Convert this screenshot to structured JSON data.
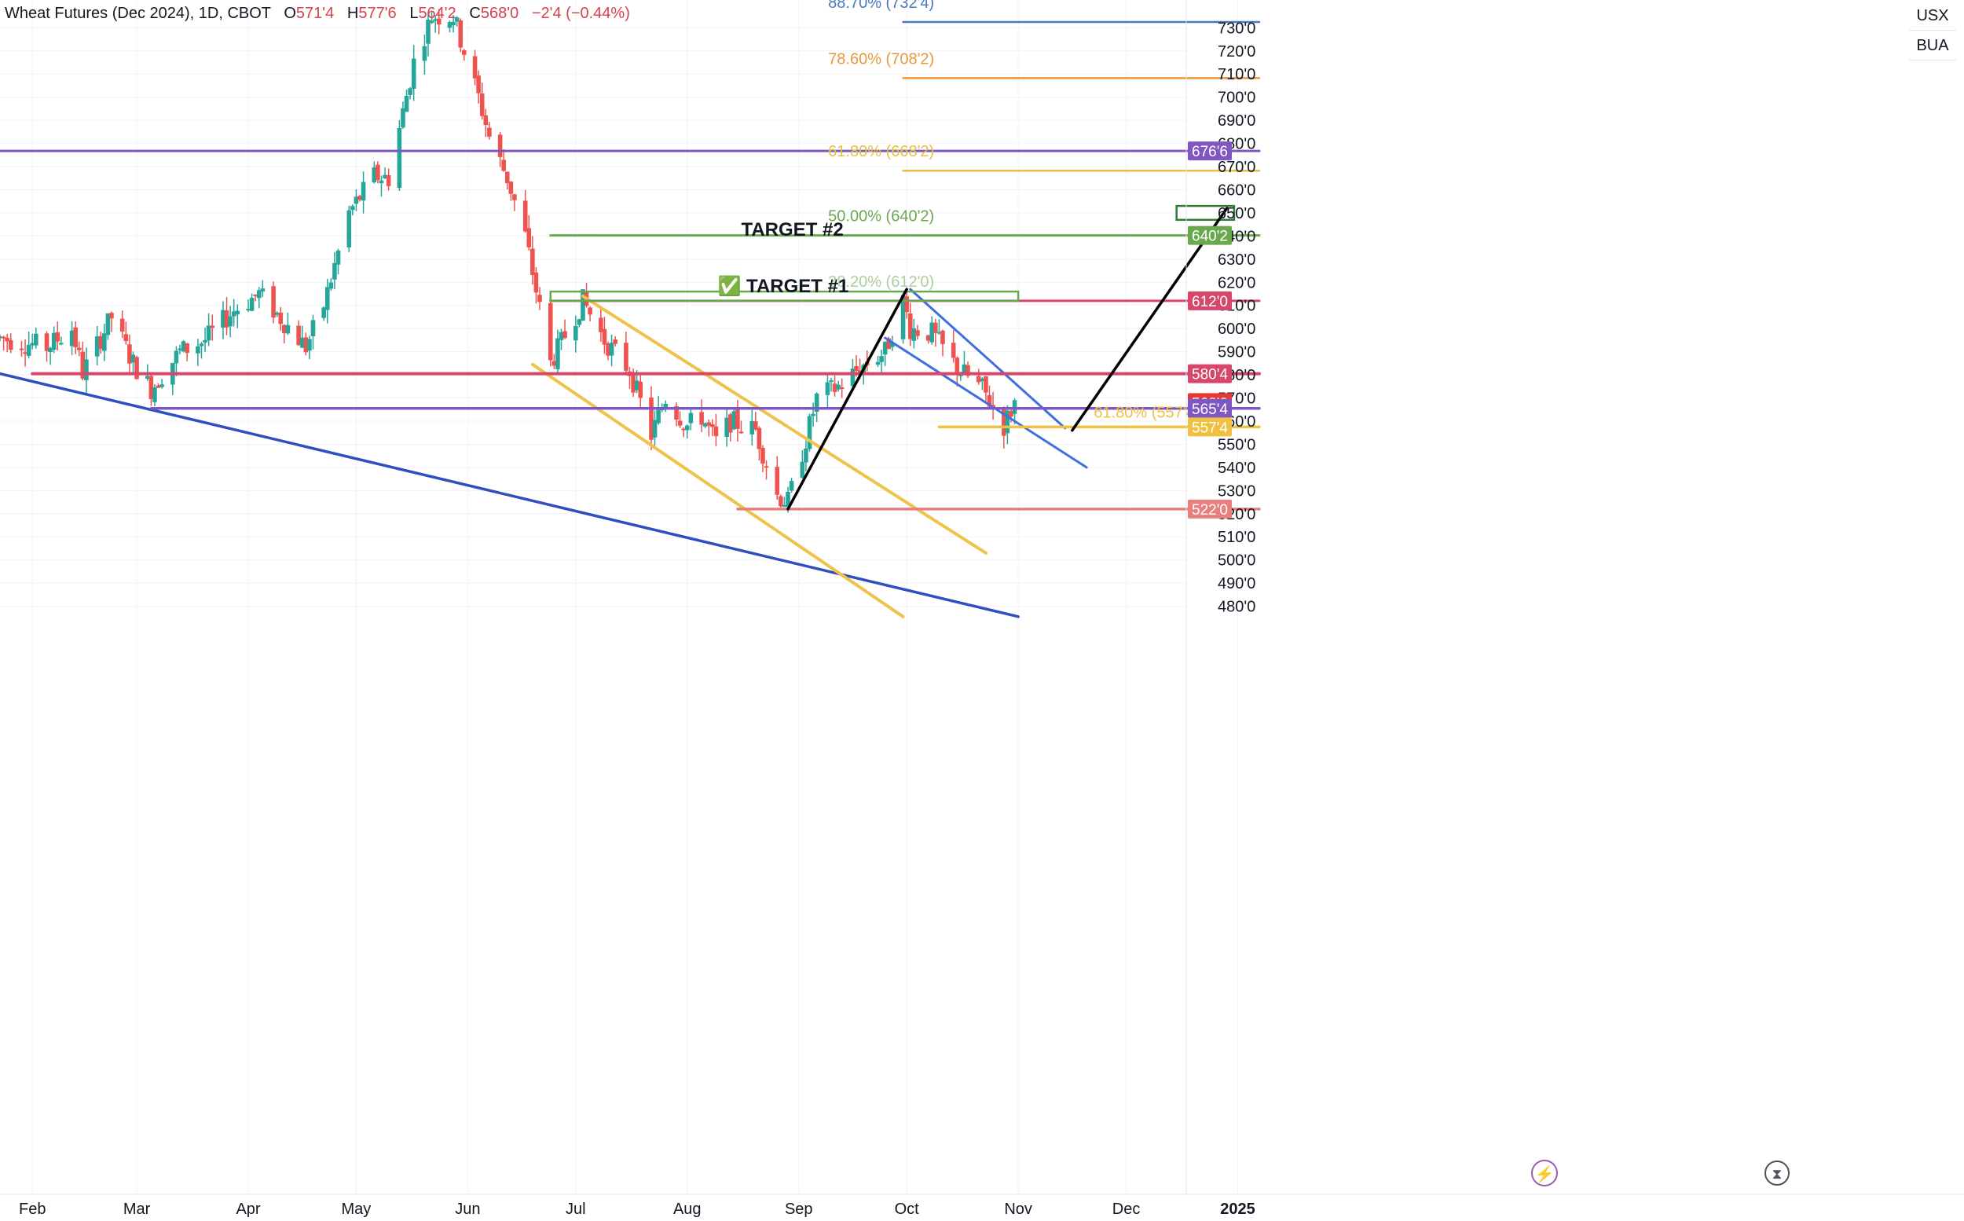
{
  "header": {
    "symbol": "Wheat Futures (Dec 2024), 1D, CBOT",
    "o_label": "O",
    "o_value": "571'4",
    "h_label": "H",
    "h_value": "577'6",
    "l_label": "L",
    "l_value": "564'2",
    "c_label": "C",
    "c_value": "568'0",
    "change": "−2'4 (−0.44%)"
  },
  "units": {
    "currency": "USX",
    "unit": "BUA"
  },
  "chart_data": {
    "type": "candlestick",
    "title": "Wheat Futures (Dec 2024), 1D, CBOT",
    "x_range": [
      "2024-01-23",
      "2025-01-07"
    ],
    "ylim": [
      475.0,
      742.0
    ],
    "price_axis_position": "right",
    "grid": true,
    "y_ticks": [
      "480'0",
      "490'0",
      "500'0",
      "510'0",
      "520'0",
      "530'0",
      "540'0",
      "550'0",
      "560'0",
      "570'0",
      "580'0",
      "590'0",
      "600'0",
      "610'0",
      "620'0",
      "630'0",
      "640'0",
      "650'0",
      "660'0",
      "670'0",
      "680'0",
      "690'0",
      "700'0",
      "710'0",
      "720'0",
      "730'0"
    ],
    "y_tick_values": [
      480,
      490,
      500,
      510,
      520,
      530,
      540,
      550,
      560,
      570,
      580,
      590,
      600,
      610,
      620,
      630,
      640,
      650,
      660,
      670,
      680,
      690,
      700,
      710,
      720,
      730
    ],
    "x_ticks": [
      {
        "label": "Feb",
        "date": "2024-02-01"
      },
      {
        "label": "Mar",
        "date": "2024-03-01"
      },
      {
        "label": "Apr",
        "date": "2024-04-01"
      },
      {
        "label": "May",
        "date": "2024-05-01"
      },
      {
        "label": "Jun",
        "date": "2024-06-01"
      },
      {
        "label": "Jul",
        "date": "2024-07-01"
      },
      {
        "label": "Aug",
        "date": "2024-08-01"
      },
      {
        "label": "Sep",
        "date": "2024-09-01"
      },
      {
        "label": "Oct",
        "date": "2024-10-01"
      },
      {
        "label": "Nov",
        "date": "2024-11-01"
      },
      {
        "label": "Dec",
        "date": "2024-12-01"
      },
      {
        "label": "2025",
        "date": "2025-01-01"
      }
    ],
    "colors": {
      "up": "#26a69a",
      "down": "#ef5350",
      "grid": "#f0f3fa"
    },
    "price_waypoints": [
      [
        "2024-01-23",
        596
      ],
      [
        "2024-02-05",
        592
      ],
      [
        "2024-02-12",
        600
      ],
      [
        "2024-02-15",
        581
      ],
      [
        "2024-02-23",
        605
      ],
      [
        "2024-02-29",
        585
      ],
      [
        "2024-03-05",
        574
      ],
      [
        "2024-03-13",
        590
      ],
      [
        "2024-03-20",
        595
      ],
      [
        "2024-03-28",
        608
      ],
      [
        "2024-04-04",
        615
      ],
      [
        "2024-04-12",
        601
      ],
      [
        "2024-04-17",
        592
      ],
      [
        "2024-04-22",
        610
      ],
      [
        "2024-04-29",
        650
      ],
      [
        "2024-05-06",
        666
      ],
      [
        "2024-05-10",
        665
      ],
      [
        "2024-05-17",
        715
      ],
      [
        "2024-05-22",
        735
      ],
      [
        "2024-05-28",
        735
      ],
      [
        "2024-06-04",
        700
      ],
      [
        "2024-06-07",
        683
      ],
      [
        "2024-06-12",
        665
      ],
      [
        "2024-06-17",
        640
      ],
      [
        "2024-06-24",
        585
      ],
      [
        "2024-06-27",
        594
      ],
      [
        "2024-07-03",
        612
      ],
      [
        "2024-07-09",
        595
      ],
      [
        "2024-07-16",
        582
      ],
      [
        "2024-07-22",
        554
      ],
      [
        "2024-07-26",
        570
      ],
      [
        "2024-08-01",
        558
      ],
      [
        "2024-08-05",
        562
      ],
      [
        "2024-08-09",
        551
      ],
      [
        "2024-08-13",
        560
      ],
      [
        "2024-08-20",
        556
      ],
      [
        "2024-08-26",
        528
      ],
      [
        "2024-08-29",
        525
      ],
      [
        "2024-09-03",
        552
      ],
      [
        "2024-09-06",
        570
      ],
      [
        "2024-09-12",
        575
      ],
      [
        "2024-09-18",
        583
      ],
      [
        "2024-09-25",
        590
      ],
      [
        "2024-09-30",
        612
      ],
      [
        "2024-10-02",
        600
      ],
      [
        "2024-10-08",
        598
      ],
      [
        "2024-10-15",
        583
      ],
      [
        "2024-10-22",
        574
      ],
      [
        "2024-10-28",
        558
      ],
      [
        "2024-10-31",
        568
      ]
    ],
    "horizontal_levels": [
      {
        "price": 676.75,
        "label": "676'6",
        "color": "#7e57c2"
      },
      {
        "price": 640.25,
        "label": "640'2",
        "color": "#6aa84f"
      },
      {
        "price": 612.0,
        "label": "612'0",
        "color": "#d6476b"
      },
      {
        "price": 580.5,
        "label": "580'4",
        "color": "#d6476b"
      },
      {
        "price": 568.0,
        "label": "568'0",
        "color": "#e53935"
      },
      {
        "price": 565.5,
        "label": "565'4",
        "color": "#7e57c2"
      },
      {
        "price": 557.5,
        "label": "557'4",
        "color": "#f0c040"
      },
      {
        "price": 522.0,
        "label": "522'0",
        "color": "#e88080"
      }
    ],
    "fib_levels": [
      {
        "label": "88.70% (732'4)",
        "price": 732.5,
        "color": "#4a78c0"
      },
      {
        "label": "78.60% (708'2)",
        "price": 708.25,
        "color": "#e8983a"
      },
      {
        "label": "61.80% (668'2)",
        "price": 668.25,
        "color": "#e8c040"
      },
      {
        "label": "50.00% (640'2)",
        "price": 640.25,
        "color": "#6aa84f"
      },
      {
        "label": "38.20% (612'0)",
        "price": 612.0,
        "color": "#6aa84f"
      },
      {
        "label": "61.80% (557'4)",
        "price": 557.5,
        "color": "#f0c040"
      }
    ],
    "annotations": [
      {
        "text": "TARGET #2",
        "date": "2024-08-16",
        "price": 643.5
      },
      {
        "text": "✅ TARGET #1",
        "date": "2024-08-16",
        "price": 619
      }
    ]
  }
}
